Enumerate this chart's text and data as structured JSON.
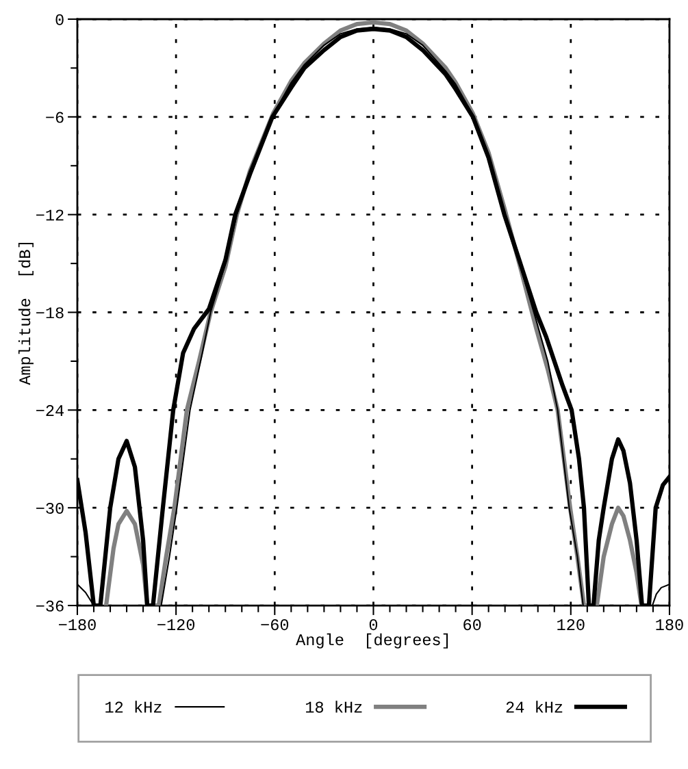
{
  "chart_data": {
    "type": "line",
    "xlabel": "Angle  [degrees]",
    "ylabel": "Amplitude  [dB]",
    "xlim": [
      -180,
      180
    ],
    "xticks": [
      -180,
      -120,
      -60,
      0,
      60,
      120,
      180
    ],
    "ylim": [
      -36,
      0
    ],
    "yticks": [
      -36,
      -30,
      -24,
      -18,
      -12,
      -6,
      0
    ],
    "grid": true,
    "legend": "bottom",
    "line_style": "solid",
    "marker": "none",
    "series": [
      {
        "name": "12 kHz",
        "color": "#000000",
        "x": [
          -180,
          -175,
          -170,
          -150,
          -129,
          -124,
          -119.5,
          -111.5,
          -104,
          -99,
          -90,
          -83,
          -75,
          -61,
          -50,
          -42,
          -30,
          -20,
          -10,
          0,
          10,
          20,
          30,
          44,
          50,
          60.5,
          70,
          79.6,
          90,
          99,
          106,
          112,
          119,
          124,
          127.5,
          150,
          169.6,
          172,
          175,
          180
        ],
        "values": [
          -34.7,
          -35.2,
          -36,
          null,
          -36,
          -33,
          -30,
          -24,
          -20.5,
          -18,
          -15,
          -12,
          -9.3,
          -5.9,
          -3.9,
          -2.8,
          -1.6,
          -0.9,
          -0.6,
          -0.5,
          -0.6,
          -0.9,
          -1.6,
          -3.2,
          -4,
          -5.9,
          -8.4,
          -12,
          -15.4,
          -18.5,
          -21,
          -24,
          -30,
          -33,
          -36,
          null,
          -36,
          -35.3,
          -34.9,
          -34.7
        ]
      },
      {
        "name": "18 kHz",
        "color": "#808080",
        "x": [
          -162.5,
          -158,
          -155,
          -150,
          -145,
          -140,
          -137.5,
          -130.5,
          -126,
          -121,
          -113.4,
          -106,
          -99,
          -90,
          -83,
          -75,
          -61,
          -50,
          -42,
          -30,
          -20,
          -10,
          0,
          10,
          20,
          30,
          44,
          50,
          60.5,
          70,
          79.6,
          90,
          99,
          106,
          112,
          119.6,
          124,
          128,
          135.8,
          140,
          145,
          148.8,
          152,
          156,
          160,
          163
        ],
        "values": [
          -36,
          -32.5,
          -31,
          -30.2,
          -31,
          -33.5,
          -36,
          -36,
          -33,
          -30,
          -24,
          -21,
          -18,
          -15.2,
          -12,
          -9.3,
          -5.8,
          -3.8,
          -2.7,
          -1.5,
          -0.7,
          -0.3,
          -0.2,
          -0.3,
          -0.7,
          -1.5,
          -3,
          -3.9,
          -5.8,
          -8.2,
          -11.6,
          -15.5,
          -19,
          -21.5,
          -24,
          -30,
          -33,
          -36,
          -36,
          -33,
          -31,
          -30,
          -30.5,
          -32,
          -34,
          -36
        ]
      },
      {
        "name": "24 kHz",
        "color": "#000000",
        "x": [
          -180,
          -175,
          -170,
          -166,
          -160,
          -155,
          -150,
          -145,
          -140,
          -137.5,
          -134,
          -128,
          -121.7,
          -115.7,
          -109,
          -100,
          -90,
          -84,
          -75,
          -61.4,
          -50,
          -42,
          -30,
          -20,
          -10,
          0,
          10,
          20,
          30,
          44,
          50,
          60.5,
          70,
          79.6,
          90,
          99,
          105,
          110,
          115,
          120.5,
          125,
          128,
          131,
          133.8,
          137,
          140,
          145,
          148.8,
          152,
          156,
          160,
          163.3,
          167.5,
          171.6,
          176,
          180
        ],
        "values": [
          -28.3,
          -31.5,
          -36,
          -36,
          -30,
          -27,
          -25.9,
          -27.5,
          -32,
          -36,
          -36,
          -30,
          -24,
          -20.5,
          -19,
          -17.8,
          -14.8,
          -12,
          -9.5,
          -6,
          -4.2,
          -3,
          -1.9,
          -1.1,
          -0.7,
          -0.6,
          -0.7,
          -1.1,
          -1.9,
          -3.4,
          -4.3,
          -6,
          -8.5,
          -12,
          -15.2,
          -18,
          -19.5,
          -21,
          -22.5,
          -24,
          -27,
          -30,
          -36,
          -36,
          -32,
          -30,
          -27,
          -25.8,
          -26.5,
          -28.5,
          -32,
          -36,
          -36,
          -30,
          -28.6,
          -28.1
        ]
      }
    ]
  }
}
